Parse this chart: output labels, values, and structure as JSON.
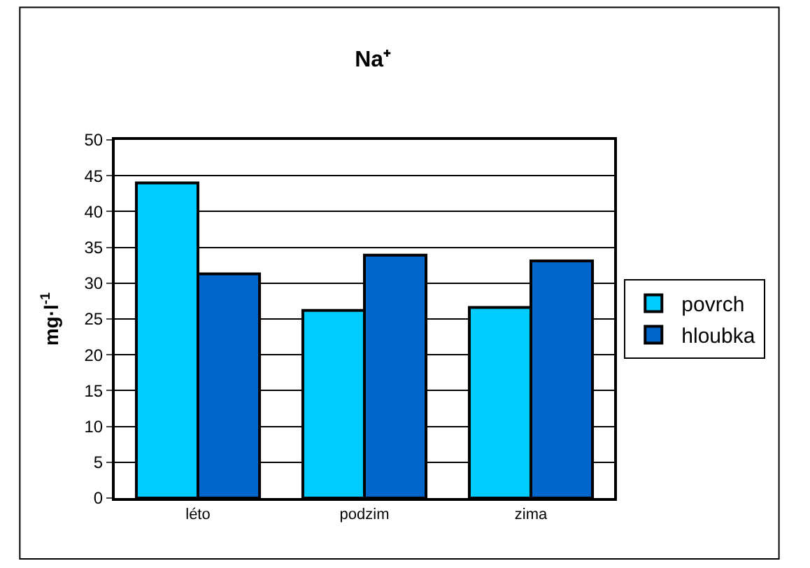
{
  "chart_data": {
    "type": "bar",
    "title": "Na⁺",
    "ylabel": "mg·l$^{-1}$",
    "categories": [
      "léto",
      "podzim",
      "zima"
    ],
    "series": [
      {
        "name": "povrch",
        "color": "#00ccff",
        "values": [
          44.0,
          26.2,
          26.6
        ]
      },
      {
        "name": "hloubka",
        "color": "#0066cc",
        "values": [
          31.3,
          33.9,
          33.1
        ]
      }
    ],
    "ylim": [
      0,
      50
    ],
    "yticks": [
      0,
      5,
      10,
      15,
      20,
      25,
      30,
      35,
      40,
      45,
      50
    ],
    "grid": "y",
    "legend": "right"
  }
}
